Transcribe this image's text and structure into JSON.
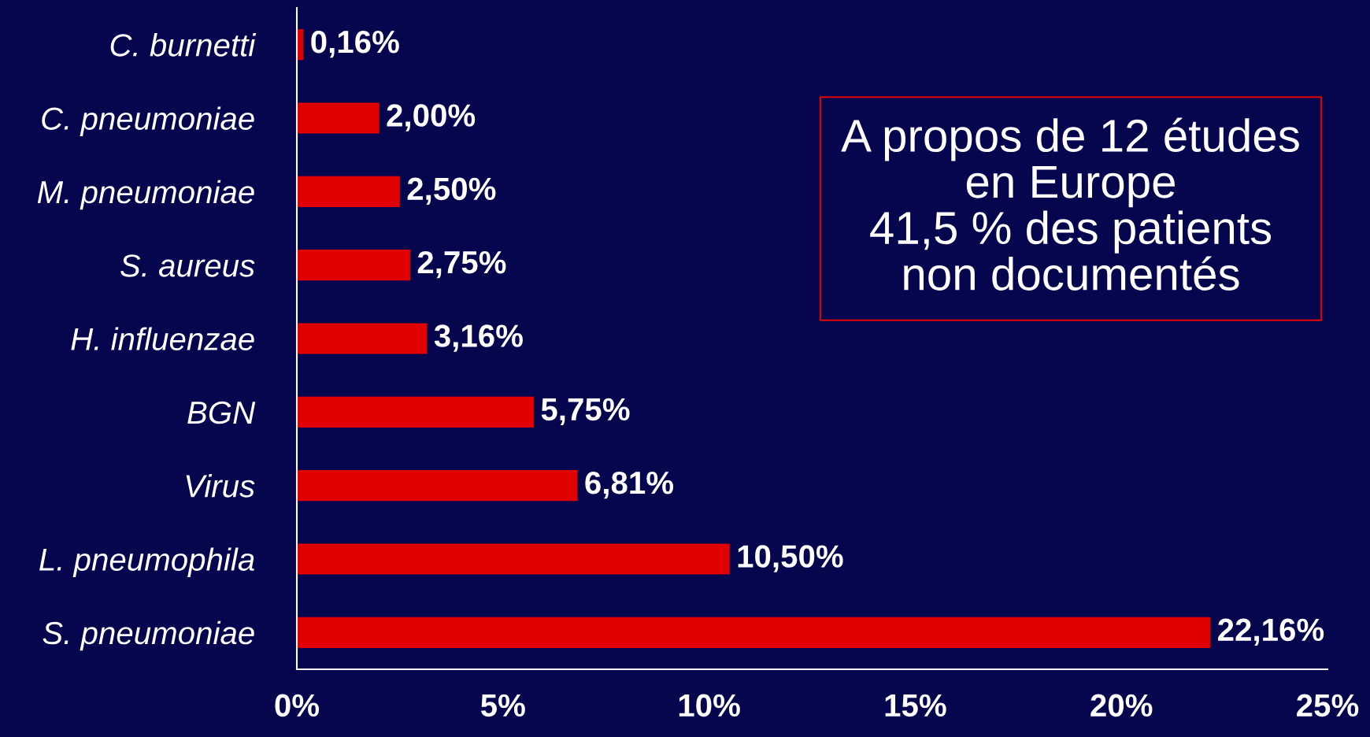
{
  "chart_data": {
    "type": "bar",
    "orientation": "horizontal",
    "categories": [
      "C. burnetti",
      "C. pneumoniae",
      "M. pneumoniae",
      "S. aureus",
      "H. influenzae",
      "BGN",
      "Virus",
      "L. pneumophila",
      "S. pneumoniae"
    ],
    "values": [
      0.16,
      2.0,
      2.5,
      2.75,
      3.16,
      5.75,
      6.81,
      10.5,
      22.16
    ],
    "value_labels": [
      "0,16%",
      "2,00%",
      "2,50%",
      "2,75%",
      "3,16%",
      "5,75%",
      "6,81%",
      "10,50%",
      "22,16%"
    ],
    "color": "#e00000",
    "xlim": [
      0,
      25
    ],
    "xticks": [
      {
        "value": 0,
        "label": "0%"
      },
      {
        "value": 5,
        "label": "5%"
      },
      {
        "value": 10,
        "label": "10%"
      },
      {
        "value": 15,
        "label": "15%"
      },
      {
        "value": 20,
        "label": "20%"
      },
      {
        "value": 25,
        "label": "25%"
      }
    ],
    "annotations": [
      "A propos de 12 études\nen Europe\n41,5 % des patients\nnon documentés"
    ]
  }
}
